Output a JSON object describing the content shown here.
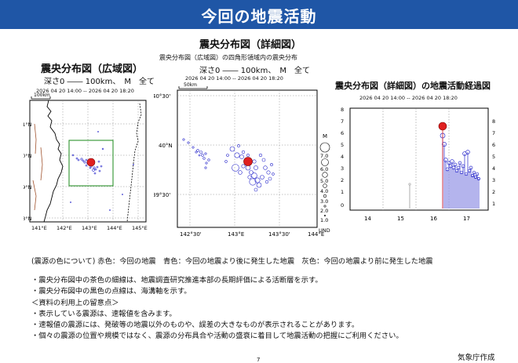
{
  "header": {
    "title": "今回の地震活動"
  },
  "overview_map": {
    "title": "震央分布図（広域図）",
    "conditions": "深さ0 ―― 100km、　M　全て",
    "period": "2026 04 20 14:00 -- 2026 04 20 18:20",
    "scale_label": "100km",
    "lat_labels": [
      "41°N",
      "40°N",
      "39°N",
      "38°N"
    ],
    "lon_labels": [
      "141°E",
      "142°E",
      "143°E",
      "144°E",
      "145°E"
    ]
  },
  "detail_map": {
    "title": "震央分布図（詳細図）",
    "subtitle": "震央分布図（広域図）の四角形領域内の震央分布",
    "conditions": "深さ0 ―― 100km、　M　全て",
    "period": "2026 04 20 14:00 -- 2026 04 20 18:20",
    "scale_label": "50km",
    "lat_labels": [
      "40°30'",
      "40°N",
      "39°30'"
    ],
    "lon_labels": [
      "142°30'",
      "143°E",
      "143°30'",
      "144°E"
    ],
    "magnitude_legend_title": "M",
    "magnitude_legend": [
      "7.0",
      "6.0",
      "5.0",
      "4.0",
      "3.0",
      "2.0",
      "1.0",
      "UND"
    ]
  },
  "timeline": {
    "title": "震央分布図（詳細図）の地震活動経過図",
    "period": "2026 04 20 14:00 -- 2026 04 20 18:20",
    "y_ticks": [
      "8",
      "7",
      "6",
      "5",
      "4",
      "3",
      "2",
      "1",
      "0"
    ],
    "x_ticks": [
      "14",
      "15",
      "16",
      "17"
    ]
  },
  "legend_colors": {
    "text": "(震源の色について) 赤色：今回の地震　青色：今回の地震より後に発生した地震　灰色：今回の地震より前に発生した地震",
    "main_quake": "#e02020",
    "after": "#2a2acc",
    "before": "#999999"
  },
  "notes": [
    "・震央分布図中の茶色の細線は、地震調査研究推進本部の長期評価による活断層を示す。",
    "・震央分布図中の黒色の点線は、海溝軸を示す。",
    "＜資料の利用上の留意点＞",
    "・表示している震源は、速報値を含みます。",
    "・速報値の震源には、発破等の地震以外のものや、誤差の大きなものが表示されることがあります。",
    "・個々の震源の位置や規模ではなく、震源の分布具合や活動の盛衰に着目して地震活動の把握にご利用ください。"
  ],
  "footer": {
    "agency": "気象庁作成",
    "page": "7"
  }
}
